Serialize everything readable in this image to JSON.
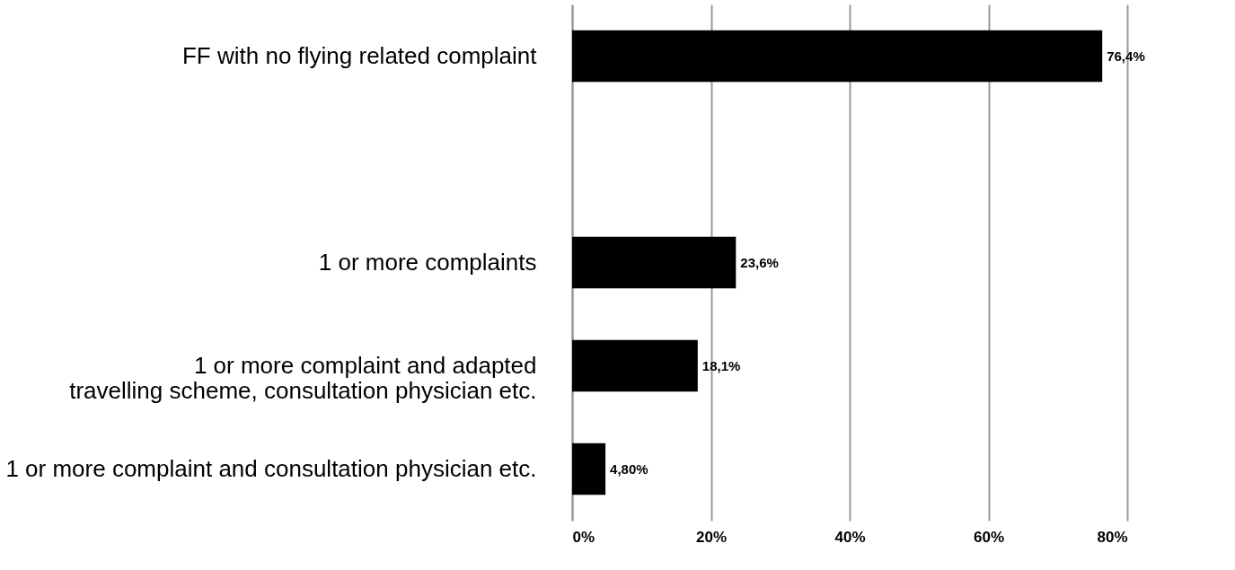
{
  "chart_data": {
    "type": "bar",
    "orientation": "horizontal",
    "categories": [
      "FF with no flying related complaint",
      null,
      "1 or more complaints",
      "1 or more complaint and adapted\n     travelling scheme, consultation physician etc.",
      "1 or more complaint and consultation physician etc."
    ],
    "values": [
      76.4,
      null,
      23.6,
      18.1,
      4.8
    ],
    "value_labels": [
      "76,4%",
      null,
      "23,6%",
      "18,1%",
      "4,80%"
    ],
    "color": "#000000",
    "xlim": [
      0,
      80
    ],
    "xticks": [
      {
        "value": 0,
        "label": "0%"
      },
      {
        "value": 20,
        "label": "20%"
      },
      {
        "value": 40,
        "label": "40%"
      },
      {
        "value": 60,
        "label": "60%"
      },
      {
        "value": 80,
        "label": "80%"
      }
    ],
    "grid": "x"
  }
}
